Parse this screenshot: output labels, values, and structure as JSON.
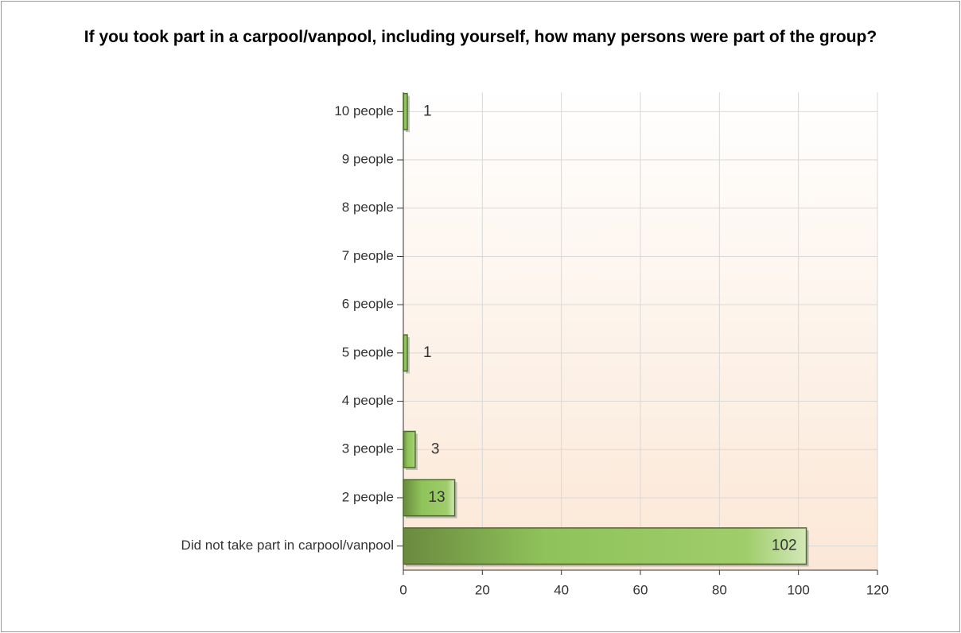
{
  "chart_data": {
    "type": "barh",
    "title": "If you took part in a carpool/vanpool, including yourself, how many persons were part of the group?",
    "categories": [
      "10 people",
      "9 people",
      "8 people",
      "7 people",
      "6 people",
      "5 people",
      "4 people",
      "3 people",
      "2 people",
      "Did not take part in carpool/vanpool"
    ],
    "values": [
      1,
      0,
      0,
      0,
      0,
      1,
      0,
      3,
      13,
      102
    ],
    "color": "#8fc25a",
    "xlim": [
      0,
      120
    ],
    "xticks": [
      0,
      20,
      40,
      60,
      80,
      100,
      120
    ],
    "grid": true
  }
}
